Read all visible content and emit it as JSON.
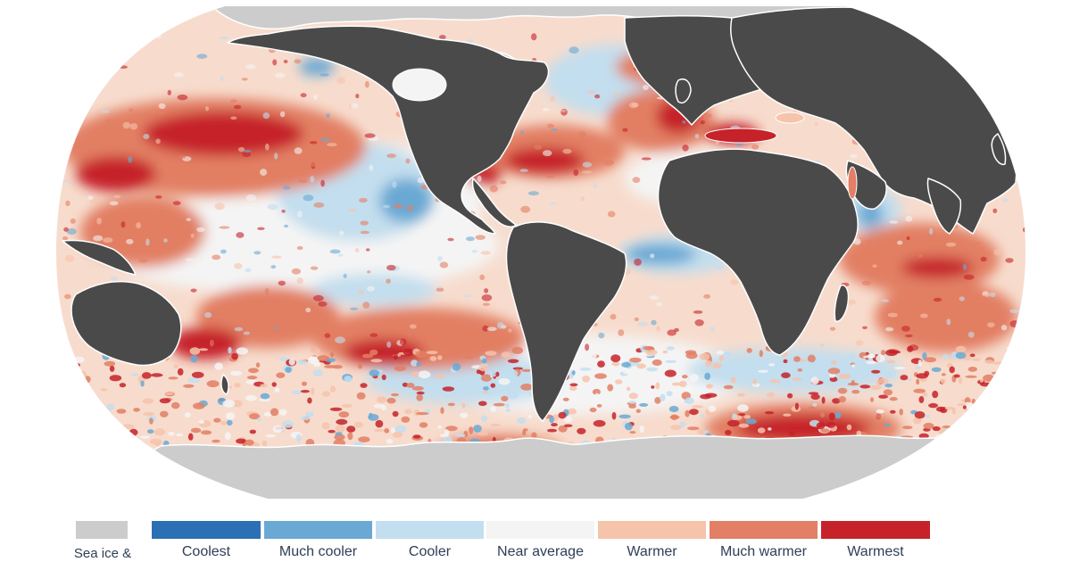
{
  "legend": {
    "items": [
      {
        "key": "sea_ice",
        "label": "Sea ice &",
        "color": "#cccccc"
      },
      {
        "key": "coolest",
        "label": "Coolest",
        "color": "#2b70b4"
      },
      {
        "key": "much_cooler",
        "label": "Much cooler",
        "color": "#6aa9d4"
      },
      {
        "key": "cooler",
        "label": "Cooler",
        "color": "#c3deee"
      },
      {
        "key": "near_average",
        "label": "Near average",
        "color": "#f4f4f4"
      },
      {
        "key": "warmer",
        "label": "Warmer",
        "color": "#f6c3ab"
      },
      {
        "key": "much_warmer",
        "label": "Much warmer",
        "color": "#e27f64"
      },
      {
        "key": "warmest",
        "label": "Warmest",
        "color": "#c62229"
      }
    ]
  },
  "map": {
    "ocean_base_color": "#f7dccd",
    "land_color": "#4a4a4a",
    "ice_color": "#cccccc",
    "outline_color": "#ffffff"
  }
}
